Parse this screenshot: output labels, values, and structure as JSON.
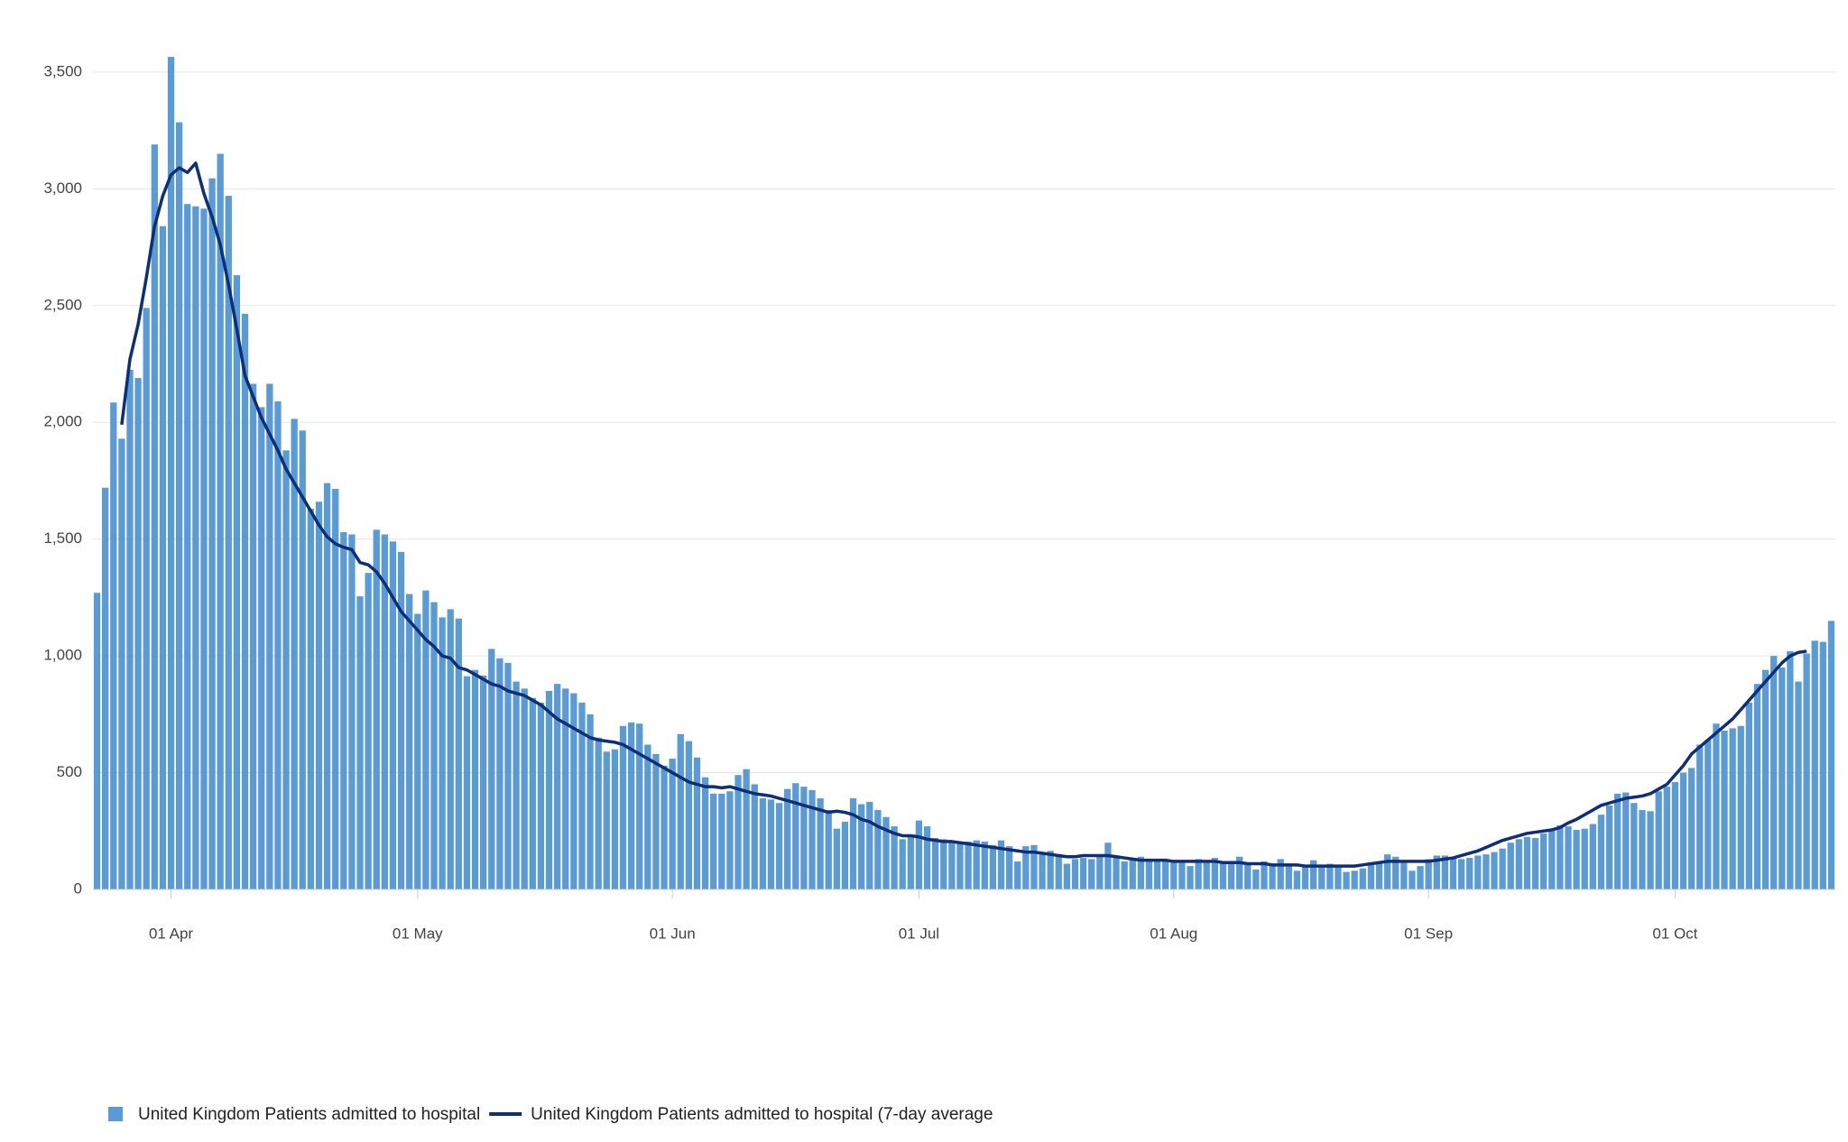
{
  "chart_data": {
    "type": "bar-line",
    "categories": [
      "23 Mar",
      "24 Mar",
      "25 Mar",
      "26 Mar",
      "27 Mar",
      "28 Mar",
      "29 Mar",
      "30 Mar",
      "31 Mar",
      "01 Apr",
      "02 Apr",
      "03 Apr",
      "04 Apr",
      "05 Apr",
      "06 Apr",
      "07 Apr",
      "08 Apr",
      "09 Apr",
      "10 Apr",
      "11 Apr",
      "12 Apr",
      "13 Apr",
      "14 Apr",
      "15 Apr",
      "16 Apr",
      "17 Apr",
      "18 Apr",
      "19 Apr",
      "20 Apr",
      "21 Apr",
      "22 Apr",
      "23 Apr",
      "24 Apr",
      "25 Apr",
      "26 Apr",
      "27 Apr",
      "28 Apr",
      "29 Apr",
      "30 Apr",
      "01 May",
      "02 May",
      "03 May",
      "04 May",
      "05 May",
      "06 May",
      "07 May",
      "08 May",
      "09 May",
      "10 May",
      "11 May",
      "12 May",
      "13 May",
      "14 May",
      "15 May",
      "16 May",
      "17 May",
      "18 May",
      "19 May",
      "20 May",
      "21 May",
      "22 May",
      "23 May",
      "24 May",
      "25 May",
      "26 May",
      "27 May",
      "28 May",
      "29 May",
      "30 May",
      "31 May",
      "01 Jun",
      "02 Jun",
      "03 Jun",
      "04 Jun",
      "05 Jun",
      "06 Jun",
      "07 Jun",
      "08 Jun",
      "09 Jun",
      "10 Jun",
      "11 Jun",
      "12 Jun",
      "13 Jun",
      "14 Jun",
      "15 Jun",
      "16 Jun",
      "17 Jun",
      "18 Jun",
      "19 Jun",
      "20 Jun",
      "21 Jun",
      "22 Jun",
      "23 Jun",
      "24 Jun",
      "25 Jun",
      "26 Jun",
      "27 Jun",
      "28 Jun",
      "29 Jun",
      "30 Jun",
      "01 Jul",
      "02 Jul",
      "03 Jul",
      "04 Jul",
      "05 Jul",
      "06 Jul",
      "07 Jul",
      "08 Jul",
      "09 Jul",
      "10 Jul",
      "11 Jul",
      "12 Jul",
      "13 Jul",
      "14 Jul",
      "15 Jul",
      "16 Jul",
      "17 Jul",
      "18 Jul",
      "19 Jul",
      "20 Jul",
      "21 Jul",
      "22 Jul",
      "23 Jul",
      "24 Jul",
      "25 Jul",
      "26 Jul",
      "27 Jul",
      "28 Jul",
      "29 Jul",
      "30 Jul",
      "31 Jul",
      "01 Aug",
      "02 Aug",
      "03 Aug",
      "04 Aug",
      "05 Aug",
      "06 Aug",
      "07 Aug",
      "08 Aug",
      "09 Aug",
      "10 Aug",
      "11 Aug",
      "12 Aug",
      "13 Aug",
      "14 Aug",
      "15 Aug",
      "16 Aug",
      "17 Aug",
      "18 Aug",
      "19 Aug",
      "20 Aug",
      "21 Aug",
      "22 Aug",
      "23 Aug",
      "24 Aug",
      "25 Aug",
      "26 Aug",
      "27 Aug",
      "28 Aug",
      "29 Aug",
      "30 Aug",
      "31 Aug",
      "01 Sep",
      "02 Sep",
      "03 Sep",
      "04 Sep",
      "05 Sep",
      "06 Sep",
      "07 Sep",
      "08 Sep",
      "09 Sep",
      "10 Sep",
      "11 Sep",
      "12 Sep",
      "13 Sep",
      "14 Sep",
      "15 Sep",
      "16 Sep",
      "17 Sep",
      "18 Sep",
      "19 Sep",
      "20 Sep",
      "21 Sep",
      "22 Sep",
      "23 Sep",
      "24 Sep",
      "25 Sep",
      "26 Sep",
      "27 Sep",
      "28 Sep",
      "29 Sep",
      "30 Sep",
      "01 Oct",
      "02 Oct",
      "03 Oct",
      "04 Oct",
      "05 Oct",
      "06 Oct",
      "07 Oct",
      "08 Oct",
      "09 Oct",
      "10 Oct",
      "11 Oct",
      "12 Oct",
      "13 Oct",
      "14 Oct",
      "15 Oct",
      "16 Oct",
      "17 Oct",
      "18 Oct",
      "19 Oct",
      "20 Oct"
    ],
    "series": [
      {
        "name": "United Kingdom Patients admitted to hospital",
        "color": "#5b9bd5",
        "kind": "bar",
        "values": [
          1270,
          1720,
          2085,
          1930,
          2225,
          2190,
          2490,
          3190,
          2840,
          3565,
          3285,
          2935,
          2925,
          2915,
          3045,
          3150,
          2970,
          2630,
          2465,
          2165,
          2065,
          2165,
          2090,
          1880,
          2015,
          1965,
          1630,
          1660,
          1740,
          1715,
          1530,
          1520,
          1255,
          1355,
          1540,
          1520,
          1490,
          1445,
          1265,
          1180,
          1280,
          1230,
          1165,
          1200,
          1160,
          913,
          940,
          916,
          1030,
          990,
          970,
          890,
          860,
          820,
          800,
          850,
          880,
          860,
          840,
          800,
          750,
          650,
          590,
          600,
          700,
          715,
          710,
          620,
          580,
          530,
          560,
          665,
          635,
          565,
          480,
          410,
          410,
          420,
          490,
          515,
          450,
          390,
          385,
          370,
          430,
          455,
          440,
          425,
          390,
          340,
          260,
          290,
          390,
          365,
          375,
          340,
          310,
          270,
          215,
          225,
          295,
          270,
          220,
          215,
          210,
          200,
          205,
          210,
          205,
          190,
          210,
          185,
          120,
          185,
          190,
          160,
          165,
          150,
          110,
          130,
          135,
          130,
          150,
          200,
          145,
          120,
          125,
          140,
          130,
          125,
          120,
          120,
          115,
          100,
          130,
          120,
          135,
          110,
          120,
          140,
          110,
          85,
          120,
          110,
          130,
          100,
          80,
          100,
          125,
          105,
          110,
          105,
          75,
          80,
          90,
          115,
          120,
          150,
          140,
          125,
          80,
          100,
          130,
          145,
          145,
          140,
          130,
          135,
          145,
          150,
          160,
          175,
          200,
          215,
          225,
          220,
          240,
          260,
          275,
          270,
          255,
          260,
          280,
          320,
          360,
          410,
          415,
          370,
          340,
          335,
          420,
          440,
          460,
          500,
          520,
          620,
          640,
          710,
          680,
          690,
          700,
          800,
          880,
          940,
          1000,
          950,
          1020,
          890,
          1010,
          1065,
          1060,
          1150
        ]
      },
      {
        "name": "United Kingdom Patients admitted to hospital (7-day average",
        "color": "#0d2f7a",
        "kind": "line",
        "values": [
          null,
          null,
          null,
          1990,
          2270,
          2420,
          2620,
          2840,
          2970,
          3060,
          3090,
          3070,
          3110,
          2980,
          2880,
          2760,
          2590,
          2400,
          2200,
          2110,
          2020,
          1950,
          1880,
          1800,
          1740,
          1680,
          1620,
          1560,
          1510,
          1480,
          1465,
          1455,
          1400,
          1390,
          1360,
          1310,
          1250,
          1190,
          1150,
          1110,
          1070,
          1040,
          1000,
          990,
          950,
          940,
          920,
          900,
          880,
          870,
          850,
          840,
          830,
          810,
          790,
          760,
          730,
          710,
          690,
          670,
          650,
          640,
          635,
          630,
          620,
          600,
          580,
          560,
          540,
          520,
          500,
          480,
          460,
          450,
          440,
          440,
          435,
          440,
          430,
          420,
          410,
          405,
          400,
          390,
          380,
          370,
          360,
          350,
          340,
          330,
          335,
          330,
          320,
          300,
          290,
          270,
          255,
          240,
          230,
          230,
          225,
          215,
          210,
          205,
          205,
          200,
          195,
          190,
          185,
          180,
          175,
          170,
          165,
          160,
          160,
          155,
          150,
          145,
          140,
          140,
          145,
          145,
          145,
          145,
          140,
          135,
          130,
          125,
          125,
          125,
          125,
          120,
          120,
          120,
          120,
          120,
          120,
          115,
          115,
          115,
          110,
          110,
          110,
          105,
          105,
          105,
          105,
          100,
          100,
          100,
          100,
          100,
          100,
          100,
          105,
          110,
          115,
          120,
          120,
          120,
          120,
          120,
          120,
          125,
          130,
          135,
          145,
          155,
          165,
          180,
          195,
          210,
          220,
          230,
          240,
          245,
          250,
          255,
          265,
          285,
          300,
          320,
          340,
          360,
          370,
          380,
          390,
          395,
          400,
          410,
          430,
          450,
          490,
          530,
          580,
          610,
          640,
          670,
          700,
          730,
          770,
          810,
          850,
          890,
          930,
          970,
          1000,
          1015,
          1020,
          null,
          null,
          null
        ]
      }
    ],
    "xticks": [
      "01 Apr",
      "01 May",
      "01 Jun",
      "01 Jul",
      "01 Aug",
      "01 Sep",
      "01 Oct"
    ],
    "ylim": [
      0,
      3600
    ],
    "yticks": [
      0,
      500,
      {
        "value": 1000,
        "label": "1,000"
      },
      {
        "value": 1500,
        "label": "1,500"
      },
      {
        "value": 2000,
        "label": "2,000"
      },
      {
        "value": 2500,
        "label": "2,500"
      },
      {
        "value": 3000,
        "label": "3,000"
      },
      {
        "value": 3500,
        "label": "3,500"
      }
    ],
    "grid": true,
    "legend": "bottom-left"
  }
}
